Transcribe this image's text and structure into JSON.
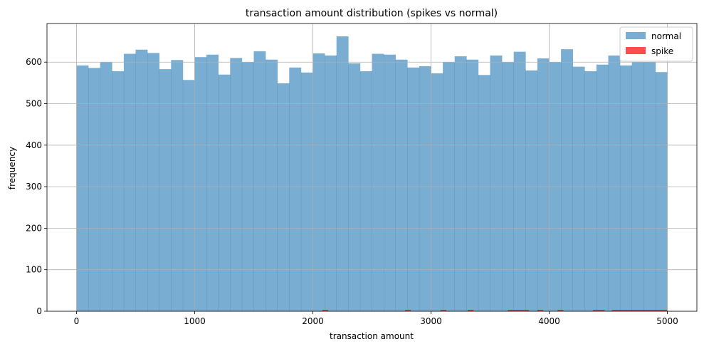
{
  "chart_data": {
    "type": "bar",
    "title": "transaction amount distribution (spikes vs normal)",
    "xlabel": "transaction amount",
    "ylabel": "frequency",
    "xlim": [
      -250,
      5250
    ],
    "ylim": [
      0,
      693
    ],
    "xticks": [
      0,
      1000,
      2000,
      3000,
      4000,
      5000
    ],
    "yticks": [
      0,
      100,
      200,
      300,
      400,
      500,
      600
    ],
    "grid": true,
    "legend_position": "top-right",
    "series": [
      {
        "name": "normal",
        "color": "#1f77b4",
        "opacity": 0.6,
        "bin_start": 0,
        "bin_width": 100,
        "values": [
          592,
          586,
          600,
          578,
          620,
          630,
          622,
          583,
          605,
          557,
          612,
          618,
          570,
          610,
          600,
          626,
          606,
          549,
          587,
          575,
          621,
          616,
          662,
          597,
          578,
          620,
          618,
          606,
          587,
          590,
          573,
          600,
          614,
          606,
          569,
          616,
          600,
          625,
          580,
          609,
          600,
          631,
          589,
          578,
          594,
          616,
          592,
          600,
          600,
          576
        ]
      },
      {
        "name": "spike",
        "color": "#ff0000",
        "opacity": 0.7,
        "bins": [
          {
            "start": 2080,
            "end": 2130,
            "value": 1
          },
          {
            "start": 2780,
            "end": 2830,
            "value": 1
          },
          {
            "start": 3080,
            "end": 3130,
            "value": 1
          },
          {
            "start": 3310,
            "end": 3360,
            "value": 1
          },
          {
            "start": 3650,
            "end": 3830,
            "value": 1
          },
          {
            "start": 3900,
            "end": 3950,
            "value": 1
          },
          {
            "start": 4070,
            "end": 4120,
            "value": 1
          },
          {
            "start": 4370,
            "end": 4470,
            "value": 1
          },
          {
            "start": 4530,
            "end": 5000,
            "value": 1
          }
        ]
      }
    ]
  }
}
